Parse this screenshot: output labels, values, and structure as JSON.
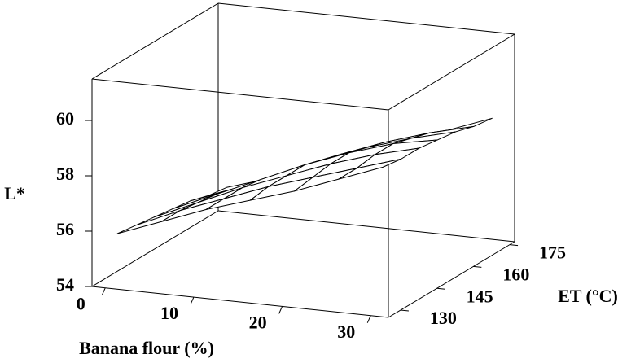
{
  "chart_data": {
    "type": "surface",
    "x_label": "Banana flour (%)",
    "y_label": "ET (°C)",
    "z_label": "L*",
    "x": [
      0,
      5,
      10,
      15,
      20,
      25,
      30
    ],
    "y": [
      130,
      137.5,
      145,
      152.5,
      160,
      167.5,
      175
    ],
    "z": [
      [
        55.7,
        56.3,
        56.9,
        57.4,
        57.9,
        58.5,
        59.1
      ],
      [
        55.6,
        56.3,
        56.9,
        57.5,
        58.0,
        58.5,
        59.0
      ],
      [
        55.5,
        56.2,
        56.9,
        57.5,
        58.1,
        58.6,
        59.0
      ],
      [
        55.4,
        56.1,
        56.8,
        57.5,
        58.1,
        58.6,
        58.9
      ],
      [
        55.3,
        55.9,
        56.6,
        57.3,
        57.9,
        58.4,
        58.8
      ],
      [
        55.1,
        55.7,
        56.4,
        57.1,
        57.7,
        58.2,
        58.6
      ],
      [
        55.0,
        55.5,
        56.2,
        56.8,
        57.4,
        57.9,
        58.5
      ]
    ],
    "xlim": [
      -1.5,
      32
    ],
    "xticks": [
      0,
      10,
      20,
      30
    ],
    "ylim": [
      125,
      177
    ],
    "yticks": [
      130,
      145,
      160,
      175
    ],
    "zlim": [
      54,
      61.5
    ],
    "zticks": [
      54,
      56,
      58,
      60
    ],
    "color": "#000000"
  }
}
